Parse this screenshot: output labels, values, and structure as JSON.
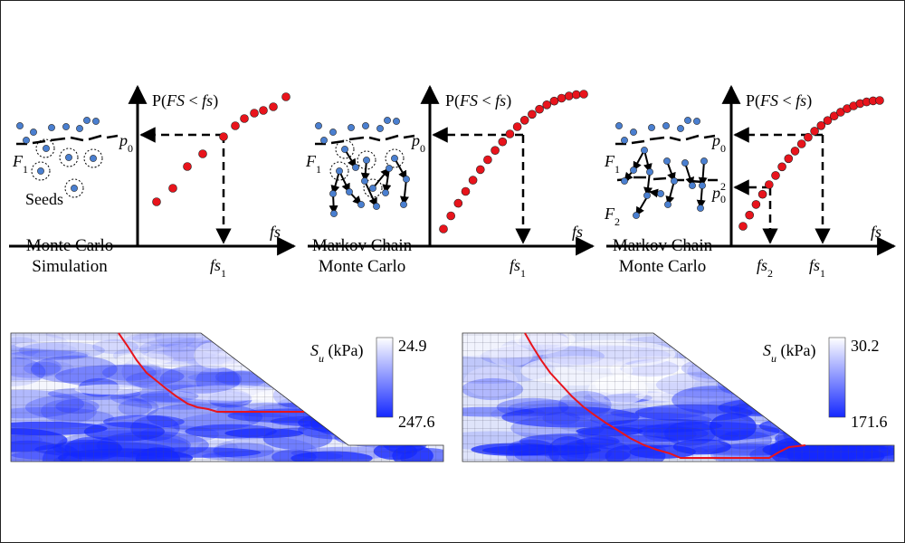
{
  "panels": [
    {
      "ylabel_prefix": "P(",
      "ylabel_fs1": "FS",
      "ylabel_lt": " < ",
      "ylabel_fs2": "fs",
      "ylabel_suffix": ")",
      "xlabel": "fs",
      "p0_base": "p",
      "p0_sub": "0",
      "fs1_base": "fs",
      "fs1_sub": "1",
      "F1_base": "F",
      "F1_sub": "1",
      "seeds_label": "Seeds",
      "caption_line1": "Monte Carlo",
      "caption_line2": "Simulation",
      "cdf_point_count": 10
    },
    {
      "ylabel_prefix": "P(",
      "ylabel_fs1": "FS",
      "ylabel_lt": " < ",
      "ylabel_fs2": "fs",
      "ylabel_suffix": ")",
      "xlabel": "fs",
      "p0_base": "p",
      "p0_sub": "0",
      "fs1_base": "fs",
      "fs1_sub": "1",
      "F1_base": "F",
      "F1_sub": "1",
      "caption_line1": "Markov Chain",
      "caption_line2": "Monte Carlo",
      "cdf_point_count": 20
    },
    {
      "ylabel_prefix": "P(",
      "ylabel_fs1": "FS",
      "ylabel_lt": " < ",
      "ylabel_fs2": "fs",
      "ylabel_suffix": ")",
      "xlabel": "fs",
      "p0_base": "p",
      "p0_sub": "0",
      "p02_base": "p",
      "p02_sub": "0",
      "p02_sup": "2",
      "fs1_base": "fs",
      "fs1_sub": "1",
      "fs2_base": "fs",
      "fs2_sub": "2",
      "F1_base": "F",
      "F1_sub": "1",
      "F2_base": "F",
      "F2_sub": "2",
      "caption_line1": "Markov Chain",
      "caption_line2": "Monte Carlo",
      "cdf_point_count": 22
    }
  ],
  "slopes": [
    {
      "colorbar_label_base": "S",
      "colorbar_label_sub": "u",
      "colorbar_label_unit": " (kPa)",
      "colorbar_max": "24.9",
      "colorbar_min": "247.6"
    },
    {
      "colorbar_label_base": "S",
      "colorbar_label_sub": "u",
      "colorbar_label_unit": " (kPa)",
      "colorbar_max": "30.2",
      "colorbar_min": "171.6"
    }
  ],
  "colors": {
    "sample_red": "#e8141c",
    "sample_blue": "#4a7fd0",
    "field_dark": "#1428ff",
    "failure_line": "#e8141c",
    "axis": "#000000"
  }
}
